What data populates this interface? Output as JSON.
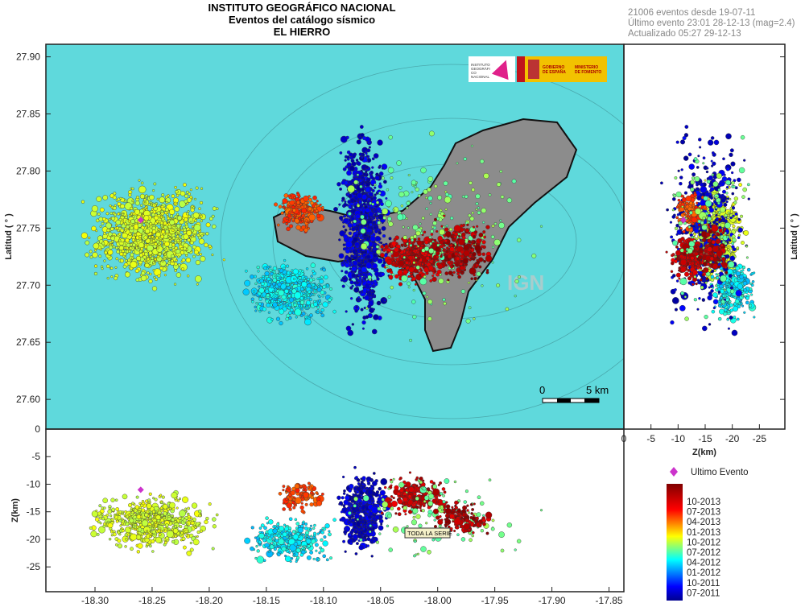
{
  "header": {
    "title_lines": [
      "INSTITUTO GEOGRÁFICO NACIONAL",
      "Eventos del catálogo sísmico",
      "EL HIERRO"
    ],
    "info_lines": [
      "21006 eventos desde 19-07-11",
      "Último evento 23:01 28-12-13  (mag=2.4)",
      "Actualizado  05:27  29-12-13"
    ]
  },
  "logos": {
    "ign": "INSTITUTO GEOGRÁFICO NACIONAL",
    "gobierno": "GOBIERNO DE ESPAÑA",
    "ministerio": "MINISTERIO DE FOMENTO"
  },
  "watermark": "IGN",
  "scale_bar": {
    "start": "0",
    "end": "5 km"
  },
  "toda_la_serie": "TODA LA SERIE",
  "chart_data": {
    "type": "scatter",
    "map": {
      "xlim": [
        -18.343,
        -17.837
      ],
      "ylim": [
        27.574,
        27.911
      ],
      "ylabel": "Latitud ( ° )",
      "yticks": [
        "27.90",
        "27.85",
        "27.80",
        "27.75",
        "27.70",
        "27.65",
        "27.60"
      ],
      "ytick_values": [
        27.9,
        27.85,
        27.8,
        27.75,
        27.7,
        27.65,
        27.6
      ]
    },
    "depth_lon": {
      "ylabel": "Z(km)",
      "ylim": [
        0,
        -29.5
      ],
      "yticks": [
        "0",
        "-5",
        "-10",
        "-15",
        "-20",
        "-25"
      ],
      "ytick_values": [
        0,
        -5,
        -10,
        -15,
        -20,
        -25
      ],
      "xticks": [
        "-18.30",
        "-18.25",
        "-18.20",
        "-18.15",
        "-18.10",
        "-18.05",
        "-18.00",
        "-17.95",
        "-17.90",
        "-17.85"
      ],
      "xtick_values": [
        -18.3,
        -18.25,
        -18.2,
        -18.15,
        -18.1,
        -18.05,
        -18.0,
        -17.95,
        -17.9,
        -17.85
      ]
    },
    "depth_lat": {
      "xlabel": "Z(km)",
      "xlim": [
        0,
        -29.7
      ],
      "xticks": [
        "0",
        "-5",
        "-10",
        "-15",
        "-20",
        "-25"
      ],
      "xtick_values": [
        0,
        -5,
        -10,
        -15,
        -20,
        -25
      ],
      "ylabel": "Latitud ( ° )"
    },
    "last_event": {
      "label": "Ultimo Evento",
      "lon": -18.26,
      "lat": 27.757,
      "depth": -11,
      "color": "#cc33cc"
    },
    "colorbar": {
      "labels": [
        "10-2013",
        "07-2013",
        "04-2013",
        "01-2013",
        "10-2012",
        "07-2012",
        "04-2012",
        "01-2012",
        "10-2011",
        "07-2011"
      ],
      "colormap": "jet"
    },
    "total_events": 21006
  },
  "colors": {
    "sea": "#5fd9dc",
    "island": "#8a8a8a",
    "accent_last": "#cc33cc"
  }
}
